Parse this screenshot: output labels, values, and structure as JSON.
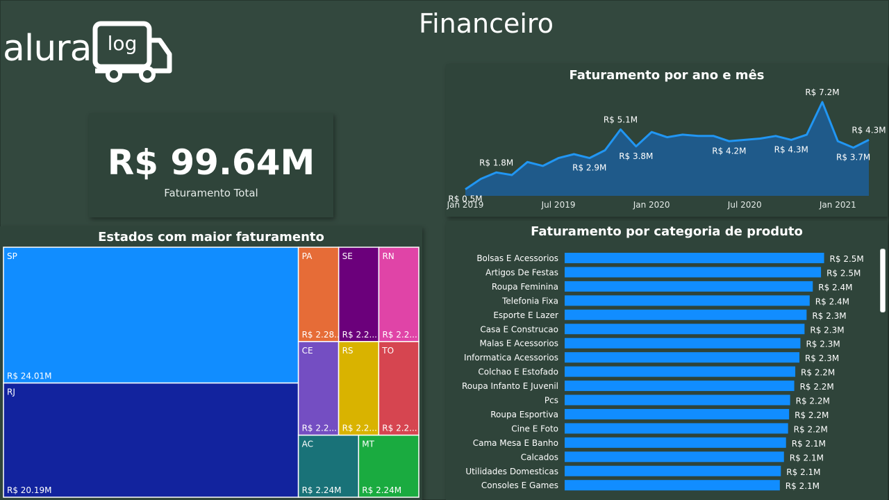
{
  "page": {
    "title": "Financeiro",
    "background": "#33483e"
  },
  "logo": {
    "text": "alura",
    "badge_text": "log",
    "icon": "truck-icon"
  },
  "kpi": {
    "value": "R$ 99.64M",
    "label": "Faturamento Total"
  },
  "line_title": "Faturamento por ano e mês",
  "treemap_title": "Estados com maior faturamento",
  "bar_title": "Faturamento por categoria de produto",
  "chart_data": [
    {
      "type": "area",
      "title": "Faturamento por ano e mês",
      "x_ticks": [
        "Jan 2019",
        "Jul 2019",
        "Jan 2020",
        "Jul 2020",
        "Jan 2021"
      ],
      "x": [
        "2019-01",
        "2019-02",
        "2019-03",
        "2019-04",
        "2019-05",
        "2019-06",
        "2019-07",
        "2019-08",
        "2019-09",
        "2019-10",
        "2019-11",
        "2019-12",
        "2020-01",
        "2020-02",
        "2020-03",
        "2020-04",
        "2020-05",
        "2020-06",
        "2020-07",
        "2020-08",
        "2020-09",
        "2020-10",
        "2020-11",
        "2020-12",
        "2021-01",
        "2021-02",
        "2021-03"
      ],
      "values": [
        0.5,
        1.3,
        1.8,
        1.6,
        2.6,
        2.3,
        2.9,
        3.2,
        2.9,
        3.5,
        5.1,
        3.8,
        4.9,
        4.5,
        4.7,
        4.6,
        4.6,
        4.2,
        4.3,
        4.4,
        4.6,
        4.3,
        4.7,
        7.2,
        4.2,
        3.7,
        4.3
      ],
      "data_labels": [
        {
          "index": 0,
          "text": "R$ 0.5M",
          "pos": "below"
        },
        {
          "index": 2,
          "text": "R$ 1.8M",
          "pos": "above"
        },
        {
          "index": 8,
          "text": "R$ 2.9M",
          "pos": "below"
        },
        {
          "index": 10,
          "text": "R$ 5.1M",
          "pos": "above"
        },
        {
          "index": 11,
          "text": "R$ 3.8M",
          "pos": "below"
        },
        {
          "index": 17,
          "text": "R$ 4.2M",
          "pos": "below"
        },
        {
          "index": 21,
          "text": "R$ 4.3M",
          "pos": "below"
        },
        {
          "index": 23,
          "text": "R$ 7.2M",
          "pos": "above"
        },
        {
          "index": 25,
          "text": "R$ 3.7M",
          "pos": "below"
        },
        {
          "index": 26,
          "text": "R$ 4.3M",
          "pos": "above"
        }
      ],
      "ylim": [
        0,
        8
      ],
      "fill_color": "#1f5a8a",
      "line_color": "#2196f3"
    },
    {
      "type": "treemap",
      "title": "Estados com maior faturamento",
      "items": [
        {
          "name": "SP",
          "label": "R$ 24.01M",
          "value": 24.01,
          "color": "#118dff"
        },
        {
          "name": "RJ",
          "label": "R$ 20.19M",
          "value": 20.19,
          "color": "#12239e"
        },
        {
          "name": "PA",
          "label": "R$ 2.28...",
          "value": 2.28,
          "color": "#e66c37"
        },
        {
          "name": "SE",
          "label": "R$ 2.2...",
          "value": 2.27,
          "color": "#6b007b"
        },
        {
          "name": "RN",
          "label": "R$ 2.2...",
          "value": 2.26,
          "color": "#e044a7"
        },
        {
          "name": "CE",
          "label": "R$ 2.2...",
          "value": 2.26,
          "color": "#744ec2"
        },
        {
          "name": "RS",
          "label": "R$ 2.2...",
          "value": 2.25,
          "color": "#d9b300"
        },
        {
          "name": "TO",
          "label": "R$ 2.2...",
          "value": 2.25,
          "color": "#d64550"
        },
        {
          "name": "AC",
          "label": "R$ 2.24M",
          "value": 2.24,
          "color": "#197278"
        },
        {
          "name": "MT",
          "label": "R$ 2.24M",
          "value": 2.24,
          "color": "#1aab40"
        }
      ]
    },
    {
      "type": "bar",
      "orientation": "horizontal",
      "title": "Faturamento por categoria de produto",
      "categories": [
        "Bolsas E Acessorios",
        "Artigos De Festas",
        "Roupa Feminina",
        "Telefonia Fixa",
        "Esporte E Lazer",
        "Casa E Construcao",
        "Malas E Acessorios",
        "Informatica Acessorios",
        "Colchao E Estofado",
        "Roupa Infanto E Juvenil",
        "Pcs",
        "Roupa Esportiva",
        "Cine E Foto",
        "Cama Mesa E Banho",
        "Calcados",
        "Utilidades Domesticas",
        "Consoles E Games"
      ],
      "values": [
        2.52,
        2.49,
        2.41,
        2.38,
        2.35,
        2.33,
        2.29,
        2.28,
        2.24,
        2.23,
        2.19,
        2.18,
        2.17,
        2.15,
        2.13,
        2.1,
        2.09
      ],
      "labels": [
        "R$ 2.5M",
        "R$ 2.5M",
        "R$ 2.4M",
        "R$ 2.4M",
        "R$ 2.3M",
        "R$ 2.3M",
        "R$ 2.3M",
        "R$ 2.3M",
        "R$ 2.2M",
        "R$ 2.2M",
        "R$ 2.2M",
        "R$ 2.2M",
        "R$ 2.2M",
        "R$ 2.1M",
        "R$ 2.1M",
        "R$ 2.1M",
        "R$ 2.1M"
      ],
      "xlim": [
        0,
        2.55
      ],
      "bar_color": "#118dff"
    }
  ]
}
